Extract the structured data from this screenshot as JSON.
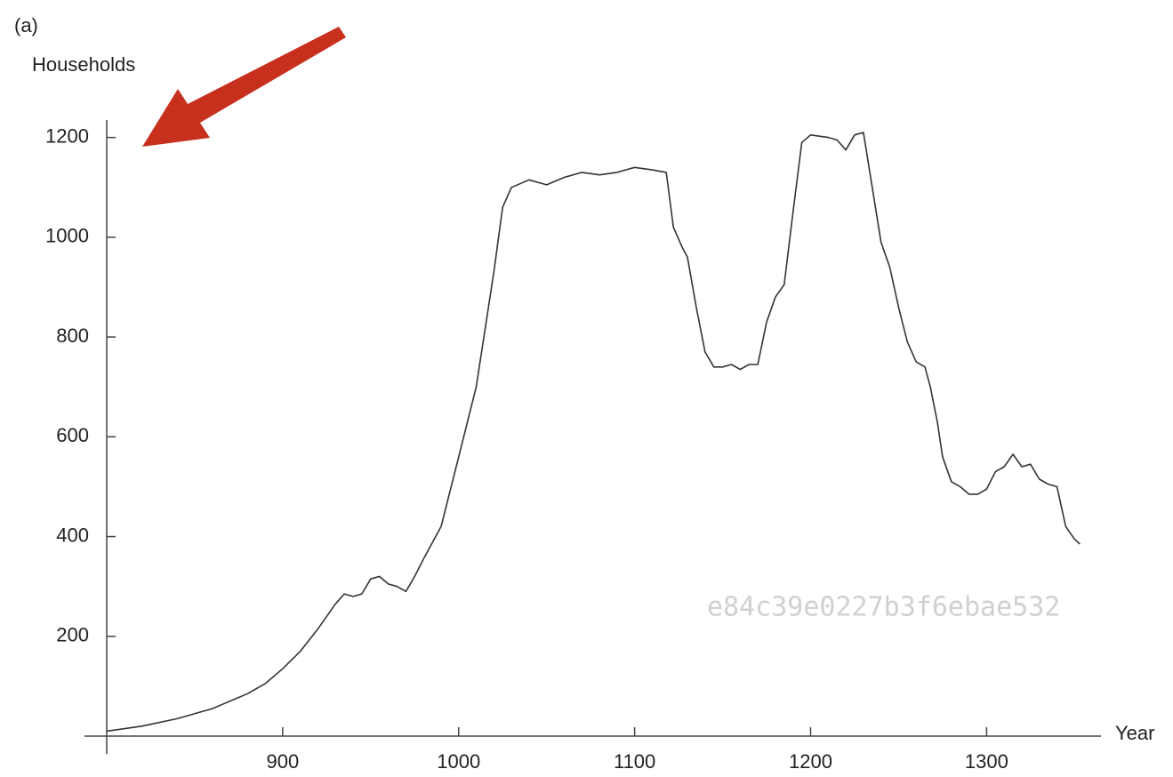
{
  "chart_data": {
    "type": "line",
    "panel_label": "(a)",
    "ylabel": "Households",
    "xlabel": "Year",
    "watermark": "e84c39e0227b3f6ebae532",
    "xlim": [
      800,
      1365
    ],
    "xticks": [
      900,
      1000,
      1100,
      1200,
      1300
    ],
    "ylim": [
      0,
      1235
    ],
    "yticks": [
      200,
      400,
      600,
      800,
      1000,
      1200
    ],
    "series": [
      {
        "color": "#333333",
        "x": [
          800,
          820,
          840,
          860,
          880,
          890,
          900,
          910,
          920,
          930,
          935,
          940,
          945,
          950,
          955,
          960,
          965,
          970,
          975,
          980,
          990,
          1000,
          1010,
          1020,
          1025,
          1030,
          1040,
          1050,
          1060,
          1070,
          1080,
          1090,
          1100,
          1110,
          1118,
          1122,
          1127,
          1130,
          1135,
          1140,
          1145,
          1150,
          1155,
          1160,
          1165,
          1170,
          1175,
          1180,
          1185,
          1190,
          1195,
          1200,
          1210,
          1215,
          1220,
          1225,
          1230,
          1235,
          1240,
          1245,
          1250,
          1255,
          1260,
          1265,
          1268,
          1272,
          1275,
          1280,
          1285,
          1290,
          1295,
          1300,
          1305,
          1310,
          1315,
          1320,
          1325,
          1330,
          1335,
          1340,
          1345,
          1350,
          1353
        ],
        "values": [
          10,
          20,
          35,
          55,
          85,
          105,
          135,
          170,
          215,
          265,
          285,
          280,
          285,
          315,
          320,
          305,
          300,
          290,
          320,
          355,
          420,
          560,
          700,
          930,
          1060,
          1100,
          1115,
          1105,
          1120,
          1130,
          1125,
          1130,
          1140,
          1135,
          1130,
          1020,
          980,
          960,
          860,
          770,
          740,
          740,
          745,
          735,
          745,
          745,
          830,
          880,
          905,
          1050,
          1190,
          1205,
          1200,
          1195,
          1175,
          1205,
          1210,
          1100,
          990,
          940,
          860,
          790,
          750,
          740,
          700,
          630,
          560,
          510,
          500,
          485,
          485,
          495,
          530,
          540,
          565,
          540,
          545,
          515,
          505,
          500,
          420,
          395,
          385
        ]
      }
    ]
  }
}
